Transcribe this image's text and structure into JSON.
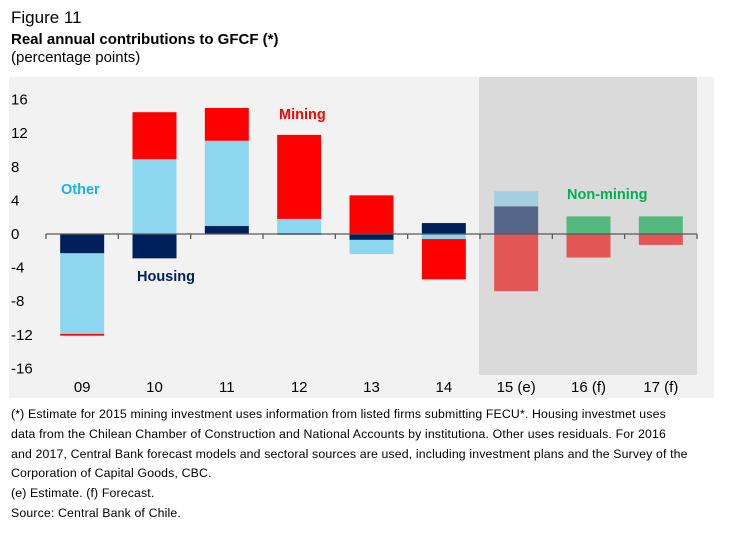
{
  "header": {
    "figure_label": "Figure 11",
    "title": "Real annual contributions to GFCF (*)",
    "subtitle": "(percentage points)"
  },
  "chart_data": {
    "type": "bar",
    "stacked": true,
    "title": "Real annual contributions to GFCF (*)",
    "ylabel": "percentage points",
    "xlabel": "",
    "ylim": [
      -18,
      18
    ],
    "yticks": [
      16,
      12,
      8,
      4,
      0,
      -4,
      -8,
      -12,
      -16
    ],
    "grid": false,
    "categories": [
      "09",
      "10",
      "11",
      "12",
      "13",
      "14",
      "15 (e)",
      "16 (f)",
      "17 (f)"
    ],
    "shaded_from_category": "15 (e)",
    "series": [
      {
        "name": "Housing",
        "color": "#00205b",
        "shaded_color": "#54668a",
        "values": [
          -2.3,
          -2.9,
          0.95,
          0.1,
          -0.7,
          1.3,
          3.3,
          null,
          null
        ]
      },
      {
        "name": "Other",
        "color": "#8dd6f0",
        "shaded_color": "#a4cfdf",
        "values": [
          -9.6,
          8.9,
          10.15,
          1.7,
          -1.7,
          -0.6,
          1.8,
          null,
          null
        ]
      },
      {
        "name": "Mining",
        "color": "#ff0000",
        "shaded_color": "#e35656",
        "values": [
          -0.2,
          5.6,
          3.9,
          10.0,
          4.6,
          -4.8,
          -6.8,
          -2.8,
          -1.3
        ]
      },
      {
        "name": "Non-mining",
        "color": "#00b050",
        "shaded_color": "#54b97e",
        "values": [
          null,
          null,
          null,
          null,
          null,
          null,
          null,
          2.1,
          2.1
        ]
      }
    ],
    "annotations": [
      {
        "text": "Other",
        "color": "#14b4ec",
        "near": "09"
      },
      {
        "text": "Housing",
        "color": "#00205b",
        "near": "10"
      },
      {
        "text": "Mining",
        "color": "#ff0000",
        "near": "12"
      },
      {
        "text": "Non-mining",
        "color": "#00b050",
        "near": "16 (f)"
      }
    ],
    "colors": {
      "panel": "#f2f2f2",
      "shade": "#dadada",
      "axis": "#595959"
    }
  },
  "notes": [
    "(*) Estimate for 2015 mining investment uses information from listed firms submitting FECU*. Housing investmet uses",
    "data from the Chilean Chamber of Construction and National Accounts by institutiona. Other uses residuals. For 2016",
    "and 2017, Central Bank forecast models and sectoral sources are used, including investment plans and the Survey of the",
    "Corporation of Capital Goods, CBC.",
    "(e) Estimate. (f) Forecast.",
    "Source: Central Bank of Chile."
  ]
}
